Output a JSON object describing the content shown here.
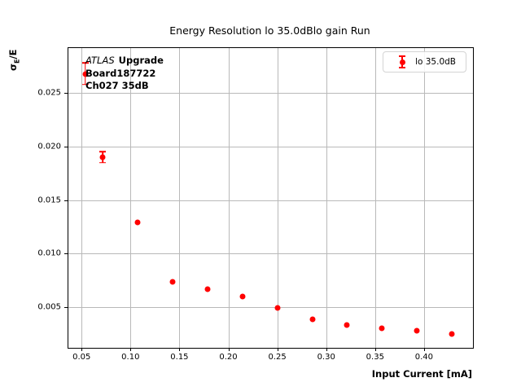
{
  "figure": {
    "ylabel_parts": {
      "sigma": "σ",
      "sub": "E",
      "rest": "/E"
    },
    "annotation": {
      "line1_italic": "ATLAS",
      "line1_bold": "Upgrade",
      "line2": "Board187722",
      "line3": "Ch027 35dB"
    },
    "colors": {
      "series": "#ff0000",
      "grid": "#b9b9b9",
      "spine": "#000000",
      "legend_border": "#d4d4d4"
    }
  },
  "chart_data": {
    "type": "scatter",
    "title": "Energy Resolution lo 35.0dBlo gain Run",
    "xlabel": "Input Current [mA]",
    "ylabel": "σ_E/E",
    "legend": [
      "lo 35.0dB"
    ],
    "legend_position": "upper right",
    "grid": true,
    "xlim": [
      0.0365,
      0.45
    ],
    "ylim": [
      0.0012,
      0.0292
    ],
    "xticks": [
      0.05,
      0.1,
      0.15,
      0.2,
      0.25,
      0.3,
      0.35,
      0.4
    ],
    "xtick_labels": [
      "0.05",
      "0.10",
      "0.15",
      "0.20",
      "0.25",
      "0.30",
      "0.35",
      "0.40"
    ],
    "yticks": [
      0.005,
      0.01,
      0.015,
      0.02,
      0.025
    ],
    "ytick_labels": [
      "0.005",
      "0.010",
      "0.015",
      "0.020",
      "0.025"
    ],
    "series": [
      {
        "name": "lo 35.0dB",
        "color": "#ff0000",
        "marker": "circle",
        "x": [
          0.0536,
          0.0714,
          0.1071,
          0.1429,
          0.1786,
          0.2143,
          0.25,
          0.2857,
          0.3214,
          0.3571,
          0.3929,
          0.4286
        ],
        "y": [
          0.0268,
          0.019,
          0.0129,
          0.0074,
          0.0067,
          0.006,
          0.0049,
          0.0039,
          0.0033,
          0.003,
          0.0028,
          0.0025
        ],
        "yerr": [
          0.001,
          0.0005,
          0.0001,
          0.0001,
          0.0001,
          0.0001,
          0.0001,
          0.0001,
          0.0001,
          0.0001,
          0.0001,
          0.0001
        ]
      }
    ]
  }
}
